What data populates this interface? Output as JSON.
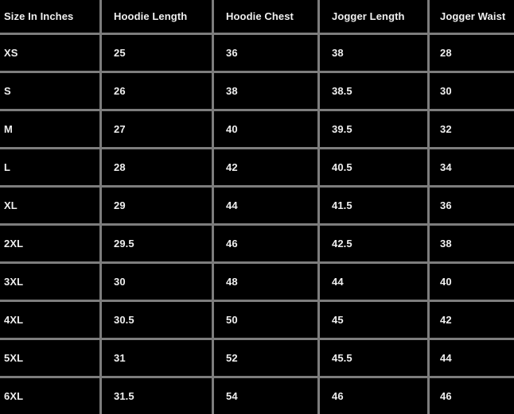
{
  "table": {
    "headers": [
      "Size In Inches",
      "Hoodie Length",
      "Hoodie Chest",
      "Jogger Length",
      "Jogger Waist"
    ],
    "rows": [
      [
        "XS",
        "25",
        "36",
        "38",
        "28"
      ],
      [
        "S",
        "26",
        "38",
        "38.5",
        "30"
      ],
      [
        "M",
        "27",
        "40",
        "39.5",
        "32"
      ],
      [
        "L",
        "28",
        "42",
        "40.5",
        "34"
      ],
      [
        "XL",
        "29",
        "44",
        "41.5",
        "36"
      ],
      [
        "2XL",
        "29.5",
        "46",
        "42.5",
        "38"
      ],
      [
        "3XL",
        "30",
        "48",
        "44",
        "40"
      ],
      [
        "4XL",
        "30.5",
        "50",
        "45",
        "42"
      ],
      [
        "5XL",
        "31",
        "52",
        "45.5",
        "44"
      ],
      [
        "6XL",
        "31.5",
        "54",
        "46",
        "46"
      ]
    ]
  },
  "colors": {
    "background": "#000000",
    "grid_lines": "#7d7d7d",
    "text": "#f0f0f0"
  }
}
